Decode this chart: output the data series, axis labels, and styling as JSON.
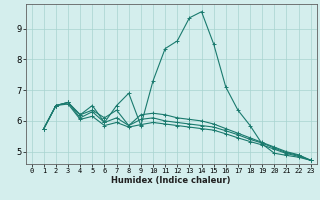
{
  "xlabel": "Humidex (Indice chaleur)",
  "background_color": "#d4eeed",
  "grid_color": "#a8d4d0",
  "line_color": "#1a7a6e",
  "xlim": [
    -0.5,
    23.5
  ],
  "ylim": [
    4.6,
    9.8
  ],
  "xticks": [
    0,
    1,
    2,
    3,
    4,
    5,
    6,
    7,
    8,
    9,
    10,
    11,
    12,
    13,
    14,
    15,
    16,
    17,
    18,
    19,
    20,
    21,
    22,
    23
  ],
  "yticks": [
    5,
    6,
    7,
    8,
    9
  ],
  "series": [
    [
      5.75,
      6.5,
      6.6,
      6.2,
      6.5,
      5.95,
      6.5,
      6.9,
      5.85,
      7.3,
      8.35,
      8.6,
      9.35,
      9.55,
      8.5,
      7.1,
      6.35,
      5.85,
      5.25,
      4.95,
      4.88,
      4.82,
      4.72
    ],
    [
      5.75,
      6.5,
      6.6,
      6.2,
      6.35,
      6.1,
      6.35,
      5.85,
      6.2,
      6.25,
      6.2,
      6.1,
      6.05,
      6.0,
      5.9,
      5.75,
      5.6,
      5.45,
      5.3,
      5.15,
      5.0,
      4.9,
      4.72
    ],
    [
      5.75,
      6.5,
      6.6,
      6.1,
      6.3,
      5.95,
      6.1,
      5.85,
      6.05,
      6.1,
      6.0,
      5.95,
      5.9,
      5.85,
      5.8,
      5.68,
      5.55,
      5.4,
      5.28,
      5.12,
      4.97,
      4.88,
      4.72
    ],
    [
      5.75,
      6.5,
      6.55,
      6.05,
      6.15,
      5.85,
      5.95,
      5.8,
      5.88,
      5.95,
      5.9,
      5.85,
      5.8,
      5.75,
      5.7,
      5.58,
      5.45,
      5.33,
      5.22,
      5.08,
      4.94,
      4.85,
      4.72
    ]
  ],
  "x_start": 1,
  "xlabel_fontsize": 6,
  "ytick_fontsize": 6,
  "xtick_fontsize": 5
}
